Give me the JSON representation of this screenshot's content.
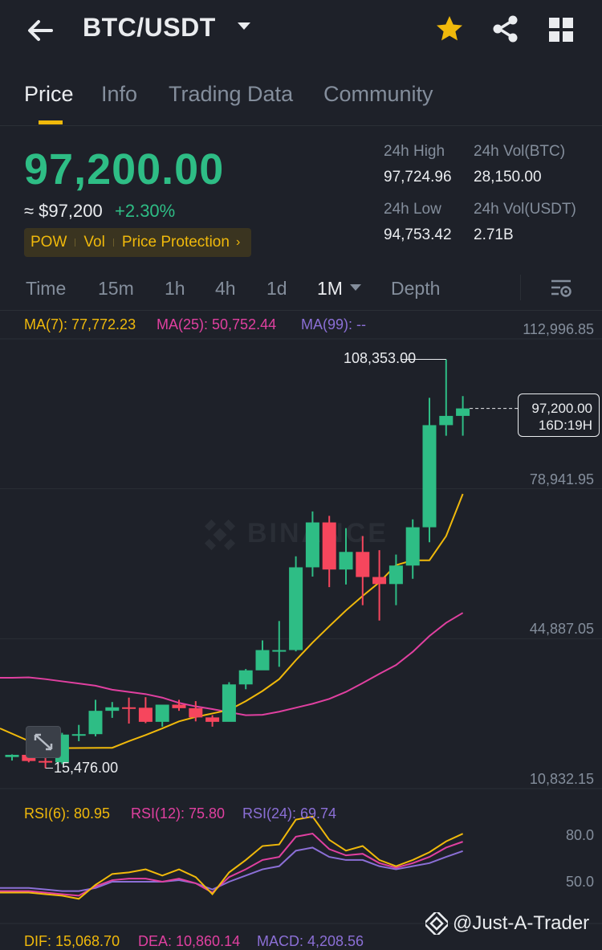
{
  "header": {
    "pair": "BTC/USDT",
    "icons": [
      "back-arrow-icon",
      "dropdown-caret-icon",
      "favorite-star-icon",
      "share-icon",
      "grid-menu-icon"
    ],
    "star_color": "#f0b90b"
  },
  "tabs": [
    "Price",
    "Info",
    "Trading Data",
    "Community"
  ],
  "active_tab": "Price",
  "price": {
    "last": "97,200.00",
    "usd": "≈ $97,200",
    "change": "+2.30%",
    "color": "#2ebd85"
  },
  "tags": {
    "pow": "POW",
    "vol": "Vol",
    "protection": "Price Protection",
    "chevron": "›"
  },
  "stats": {
    "high_label": "24h High",
    "high_value": "97,724.96",
    "vol_btc_label": "24h Vol(BTC)",
    "vol_btc_value": "28,150.00",
    "low_label": "24h Low",
    "low_value": "94,753.42",
    "vol_usdt_label": "24h Vol(USDT)",
    "vol_usdt_value": "2.71B"
  },
  "timeframes": [
    "Time",
    "15m",
    "1h",
    "4h",
    "1d",
    "1M",
    "Depth"
  ],
  "active_timeframe": "1M",
  "ma": {
    "ma7": "MA(7): 77,772.23",
    "ma25": "MA(25): 50,752.44",
    "ma99": "MA(99): --",
    "colors": {
      "ma7": "#f0b90b",
      "ma25": "#e040a0",
      "ma99": "#8b6fd6"
    }
  },
  "axis": {
    "top": "112,996.85",
    "upper": "78,941.95",
    "mid": "44,887.05",
    "bottom": "10,832.15"
  },
  "chart": {
    "high_marker": "108,353.00",
    "low_marker": "15,476.00",
    "current_price": "97,200.00",
    "countdown": "16D:19H",
    "watermark": "BINANCE"
  },
  "rsi": {
    "rsi6": "RSI(6): 80.95",
    "rsi12": "RSI(12): 75.80",
    "rsi24": "RSI(24): 69.74",
    "level_high": "80.0",
    "level_low": "50.0"
  },
  "macd": {
    "dif": "DIF: 15,068.70",
    "dea": "DEA: 10,860.14",
    "macd": "MACD: 4,208.56"
  },
  "credit": "@Just-A-Trader",
  "colors": {
    "up": "#2ebd85",
    "down": "#f6465d",
    "accent": "#f0b90b",
    "bg": "#1e2129"
  },
  "chart_data": {
    "type": "candlestick",
    "title": "",
    "xlabel": "",
    "ylabel": "",
    "ylim": [
      10832.15,
      112996.85
    ],
    "y_ticks": [
      112996.85,
      78941.95,
      44887.05,
      10832.15
    ],
    "candles": [
      {
        "o": 18000,
        "h": 18600,
        "l": 17200,
        "c": 18500
      },
      {
        "o": 18500,
        "h": 19200,
        "l": 16800,
        "c": 17100
      },
      {
        "o": 17100,
        "h": 19800,
        "l": 15476,
        "c": 16800
      },
      {
        "o": 16800,
        "h": 23500,
        "l": 16400,
        "c": 23100
      },
      {
        "o": 23100,
        "h": 25300,
        "l": 21600,
        "c": 23200
      },
      {
        "o": 23200,
        "h": 31000,
        "l": 22700,
        "c": 28500
      },
      {
        "o": 28500,
        "h": 30500,
        "l": 26900,
        "c": 29300
      },
      {
        "o": 29300,
        "h": 31500,
        "l": 25600,
        "c": 29200
      },
      {
        "o": 29200,
        "h": 31600,
        "l": 25700,
        "c": 26000
      },
      {
        "o": 26000,
        "h": 29500,
        "l": 24900,
        "c": 29900
      },
      {
        "o": 29900,
        "h": 31000,
        "l": 28500,
        "c": 29100
      },
      {
        "o": 29100,
        "h": 30700,
        "l": 26100,
        "c": 27000
      },
      {
        "o": 27000,
        "h": 27500,
        "l": 24900,
        "c": 26000
      },
      {
        "o": 26000,
        "h": 35000,
        "l": 26400,
        "c": 34500
      },
      {
        "o": 34500,
        "h": 38000,
        "l": 33400,
        "c": 37700
      },
      {
        "o": 37700,
        "h": 44500,
        "l": 37800,
        "c": 42300
      },
      {
        "o": 42300,
        "h": 48900,
        "l": 38500,
        "c": 42300
      },
      {
        "o": 42300,
        "h": 63600,
        "l": 42000,
        "c": 61100
      },
      {
        "o": 61100,
        "h": 73800,
        "l": 59000,
        "c": 71300
      },
      {
        "o": 71300,
        "h": 72800,
        "l": 56600,
        "c": 60600
      },
      {
        "o": 60600,
        "h": 70000,
        "l": 57200,
        "c": 64600
      },
      {
        "o": 64600,
        "h": 68200,
        "l": 52500,
        "c": 58900
      },
      {
        "o": 58900,
        "h": 65000,
        "l": 49000,
        "c": 57300
      },
      {
        "o": 57300,
        "h": 64000,
        "l": 52500,
        "c": 61500
      },
      {
        "o": 61500,
        "h": 72000,
        "l": 58500,
        "c": 70200
      },
      {
        "o": 70200,
        "h": 99600,
        "l": 66800,
        "c": 93400
      },
      {
        "o": 93400,
        "h": 108353,
        "l": 91000,
        "c": 95500
      },
      {
        "o": 95500,
        "h": 100000,
        "l": 91000,
        "c": 97200
      }
    ],
    "ma7": [
      null,
      null,
      null,
      null,
      null,
      null,
      20100,
      21600,
      23000,
      24500,
      26100,
      27100,
      27900,
      28700,
      30700,
      33000,
      35700,
      40000,
      44000,
      47700,
      51300,
      54600,
      57700,
      61600,
      62700,
      62700,
      68200,
      77772
    ],
    "ma25": [
      36000,
      36100,
      35700,
      35200,
      34700,
      34200,
      33300,
      32800,
      32300,
      31500,
      30300,
      29500,
      28900,
      28200,
      27500,
      27600,
      28300,
      29200,
      30100,
      31200,
      32800,
      34800,
      36900,
      38900,
      41900,
      45500,
      48500,
      50752
    ],
    "rsi": {
      "rsi6": [
        43,
        43,
        42,
        41,
        39,
        48,
        55,
        56,
        58,
        54,
        58,
        53,
        42,
        56,
        64,
        73,
        74,
        90,
        92,
        77,
        70,
        73,
        64,
        60,
        64,
        69,
        76,
        80.95
      ],
      "rsi12": [
        44,
        44,
        43,
        42,
        41,
        47,
        51,
        52,
        52,
        50,
        52,
        49,
        43,
        53,
        58,
        64,
        66,
        79,
        81,
        71,
        67,
        68,
        62,
        59,
        62,
        66,
        72,
        75.8
      ],
      "rsi24": [
        46,
        46,
        45,
        44,
        44,
        46,
        50,
        50,
        50,
        50,
        51,
        49,
        45,
        50,
        54,
        58,
        60,
        70,
        72,
        66,
        64,
        64,
        60,
        58,
        60,
        62,
        66,
        69.74
      ]
    }
  }
}
